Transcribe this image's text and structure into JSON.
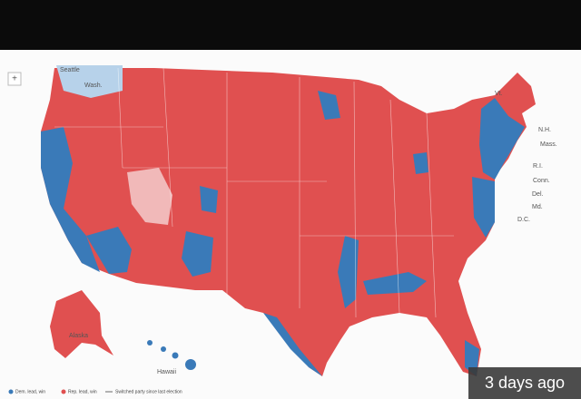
{
  "map": {
    "zoom_button": "+",
    "labels": [
      "Seattle",
      "Wash.",
      "Vt.",
      "N.H.",
      "Mass.",
      "R.I.",
      "Conn.",
      "Del.",
      "Md.",
      "D.C.",
      "Alaska",
      "Hawaii"
    ]
  },
  "legend": [
    {
      "label": "Dem. lead, win"
    },
    {
      "label": "Rep. lead, win"
    },
    {
      "label": "Switched party since last election"
    }
  ],
  "timestamp": "3 days ago"
}
